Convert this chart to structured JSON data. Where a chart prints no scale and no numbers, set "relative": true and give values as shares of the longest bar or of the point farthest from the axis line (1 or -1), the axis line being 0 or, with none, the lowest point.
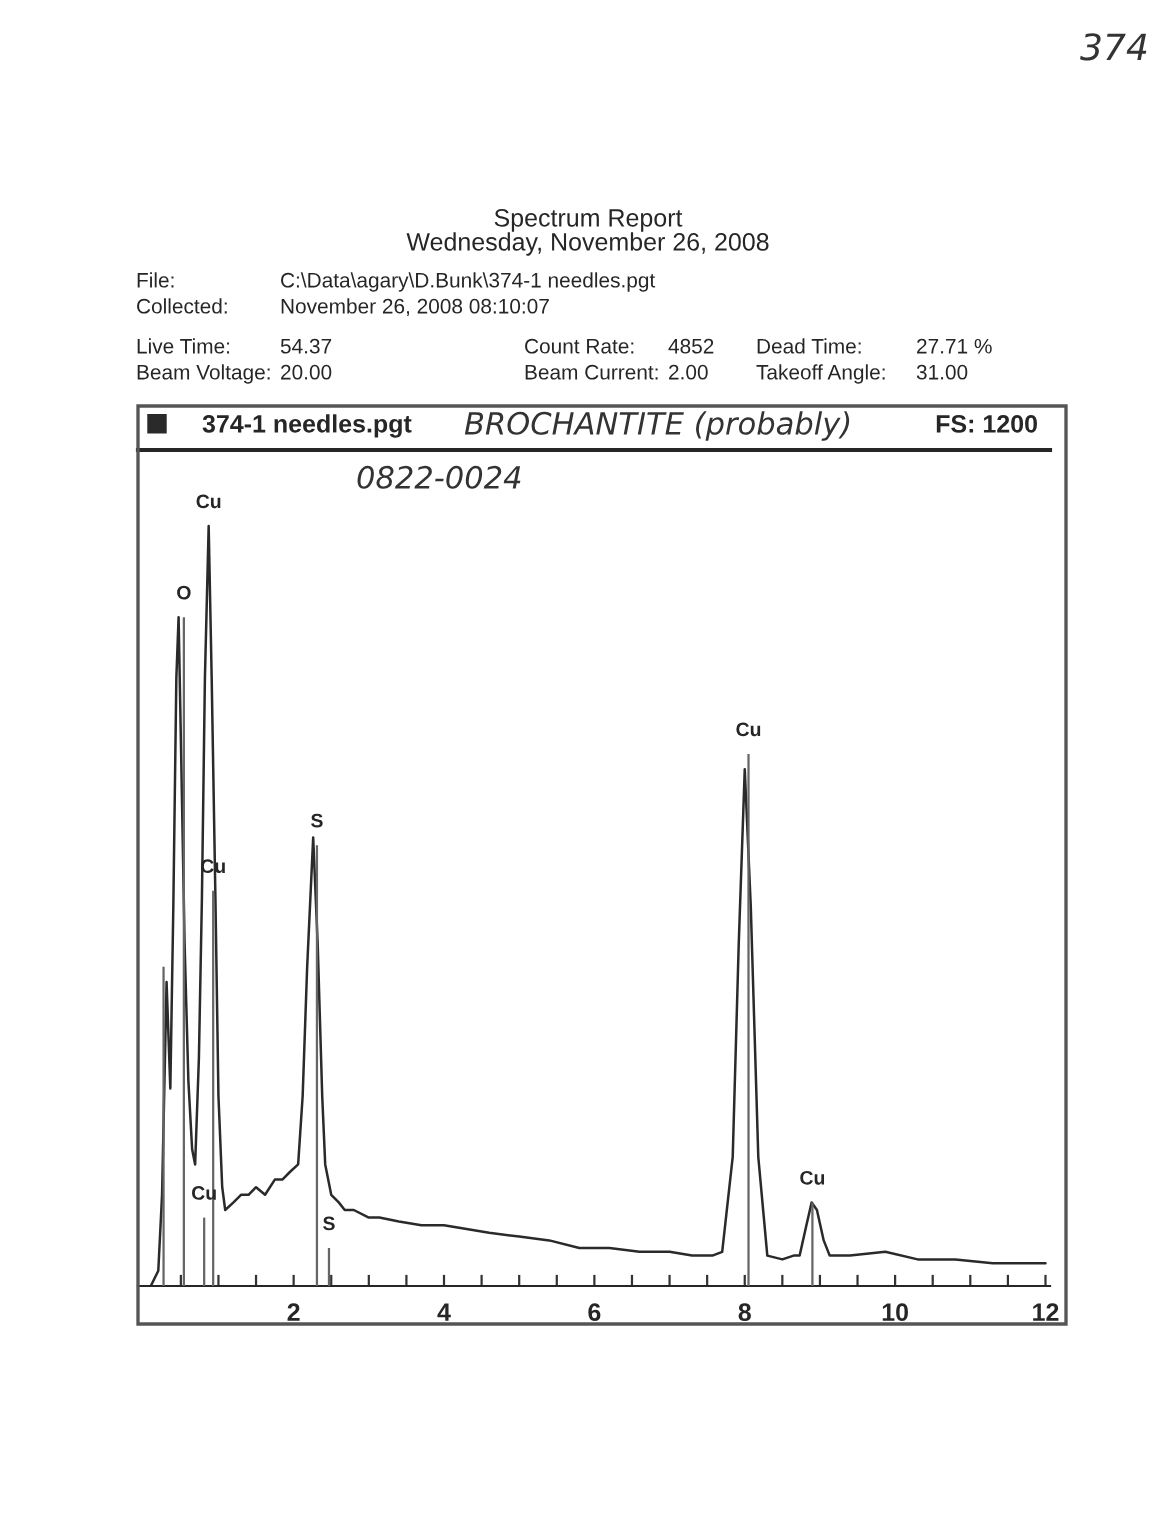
{
  "chart_data": {
    "type": "line",
    "title": "Spectrum Report",
    "subtitle": "Wednesday, November 26, 2008",
    "relative": true,
    "grid": false,
    "legend": "top left",
    "marker": "none",
    "line_style": "solid",
    "x": [
      0.1,
      0.2,
      0.25,
      0.31,
      0.36,
      0.4,
      0.44,
      0.47,
      0.5,
      0.55,
      0.6,
      0.65,
      0.69,
      0.74,
      0.78,
      0.82,
      0.87,
      0.91,
      0.96,
      1.0,
      1.05,
      1.09,
      1.2,
      1.3,
      1.4,
      1.5,
      1.62,
      1.75,
      1.85,
      1.95,
      2.06,
      2.12,
      2.18,
      2.26,
      2.32,
      2.38,
      2.42,
      2.5,
      2.6,
      2.68,
      2.8,
      3.0,
      3.14,
      3.4,
      3.7,
      4.0,
      4.3,
      4.6,
      5.0,
      5.4,
      5.8,
      6.2,
      6.6,
      7.0,
      7.3,
      7.57,
      7.7,
      7.84,
      7.92,
      8.0,
      8.08,
      8.18,
      8.3,
      8.5,
      8.65,
      8.73,
      8.82,
      8.89,
      8.96,
      9.05,
      9.13,
      9.4,
      9.87,
      10.3,
      10.8,
      11.3,
      11.7,
      12.0
    ],
    "series": [
      {
        "name": "374-1 needles.pgt",
        "color": "#2a2a2a",
        "values": [
          0.0,
          0.02,
          0.12,
          0.4,
          0.26,
          0.5,
          0.8,
          0.88,
          0.72,
          0.45,
          0.27,
          0.18,
          0.16,
          0.3,
          0.51,
          0.8,
          1.0,
          0.8,
          0.51,
          0.25,
          0.13,
          0.1,
          0.11,
          0.12,
          0.12,
          0.13,
          0.12,
          0.14,
          0.14,
          0.15,
          0.16,
          0.25,
          0.42,
          0.59,
          0.45,
          0.25,
          0.16,
          0.12,
          0.11,
          0.1,
          0.1,
          0.09,
          0.09,
          0.085,
          0.08,
          0.08,
          0.075,
          0.07,
          0.065,
          0.06,
          0.05,
          0.05,
          0.045,
          0.045,
          0.04,
          0.04,
          0.045,
          0.17,
          0.45,
          0.68,
          0.5,
          0.17,
          0.04,
          0.035,
          0.04,
          0.04,
          0.08,
          0.11,
          0.1,
          0.06,
          0.04,
          0.04,
          0.045,
          0.035,
          0.035,
          0.03,
          0.03,
          0.03
        ]
      },
      {
        "type": "bar",
        "color": "#666666",
        "x": [
          0.27,
          0.54,
          0.81,
          0.93,
          2.31,
          2.47,
          8.05,
          8.9
        ],
        "values": [
          0.42,
          0.88,
          0.09,
          0.52,
          0.58,
          0.05,
          0.7,
          0.11
        ]
      }
    ],
    "xlim": [
      -0.07,
      12.06
    ],
    "xticks": [
      {
        "value": 0.5,
        "label": null
      },
      {
        "value": 1,
        "label": null
      },
      {
        "value": 1.5,
        "label": null
      },
      2,
      {
        "value": 2.5,
        "label": null
      },
      {
        "value": 3,
        "label": null
      },
      {
        "value": 3.5,
        "label": null
      },
      4,
      {
        "value": 4.5,
        "label": null
      },
      {
        "value": 5,
        "label": null
      },
      {
        "value": 5.5,
        "label": null
      },
      6,
      {
        "value": 6.5,
        "label": null
      },
      {
        "value": 7,
        "label": null
      },
      {
        "value": 7.5,
        "label": null
      },
      8,
      {
        "value": 8.5,
        "label": null
      },
      {
        "value": 9,
        "label": null
      },
      {
        "value": 9.5,
        "label": null
      },
      10,
      {
        "value": 10.5,
        "label": null
      },
      {
        "value": 11,
        "label": null
      },
      {
        "value": 11.5,
        "label": null
      },
      12
    ],
    "annotations": [
      "File:",
      "C:\\Data\\agary\\D.Bunk\\374-1 needles.pgt",
      "Collected:",
      "November 26, 2008 08:10:07",
      "Live Time:",
      "54.37",
      "Beam Voltage:",
      "20.00",
      "Count Rate:",
      "4852",
      "Beam Current:",
      "2.00",
      "Dead Time:",
      "27.71 %",
      "Takeoff Angle:",
      "31.00",
      "FS: 1200",
      "BROCHANTITE (probably)",
      "0822-0024",
      "374",
      {
        "text": "O",
        "x": 0.54,
        "y": 0.88
      },
      {
        "text": "Cu",
        "x": 0.87,
        "y": 1.0
      },
      {
        "text": "Cu",
        "x": 0.93,
        "y": 0.52
      },
      {
        "text": "Cu",
        "x": 0.81,
        "y": 0.09
      },
      {
        "text": "S",
        "x": 2.31,
        "y": 0.58
      },
      {
        "text": "S",
        "x": 2.47,
        "y": 0.05
      },
      {
        "text": "Cu",
        "x": 8.05,
        "y": 0.7
      },
      {
        "text": "Cu",
        "x": 8.9,
        "y": 0.11
      }
    ]
  }
}
